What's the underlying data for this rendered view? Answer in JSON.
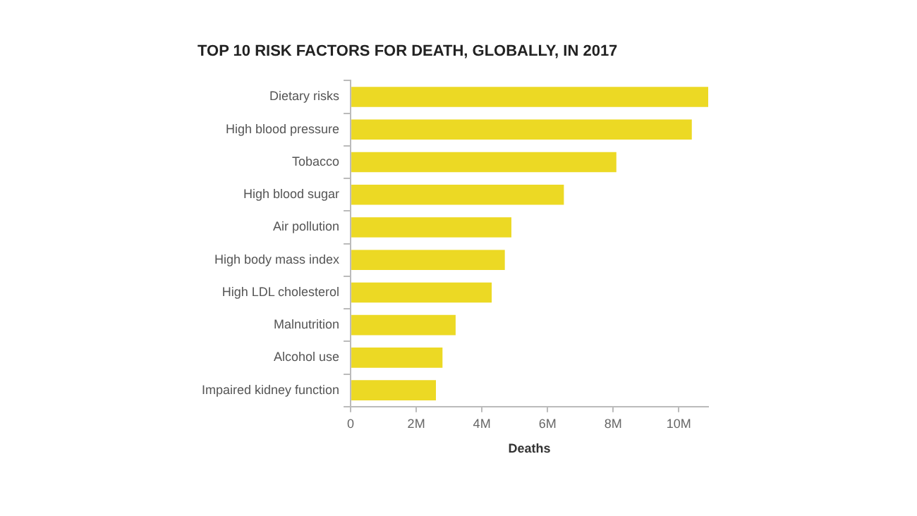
{
  "chart_data": {
    "type": "bar",
    "orientation": "horizontal",
    "title": "TOP 10 RISK FACTORS FOR DEATH, GLOBALLY, IN 2017",
    "xlabel": "Deaths",
    "categories": [
      "Dietary risks",
      "High blood pressure",
      "Tobacco",
      "High blood sugar",
      "Air pollution",
      "High body mass index",
      "High LDL cholesterol",
      "Malnutrition",
      "Alcohol use",
      "Impaired kidney function"
    ],
    "values": [
      10900000,
      10400000,
      8100000,
      6500000,
      4900000,
      4700000,
      4300000,
      3200000,
      2800000,
      2600000
    ],
    "color": "#ecd924",
    "xlim": [
      0,
      10900000
    ],
    "xticks": [
      0,
      {
        "value": 2000000,
        "label": "2M"
      },
      {
        "value": 4000000,
        "label": "4M"
      },
      {
        "value": 6000000,
        "label": "6M"
      },
      {
        "value": 8000000,
        "label": "8M"
      },
      {
        "value": 10000000,
        "label": "10M"
      }
    ],
    "grid": false
  }
}
